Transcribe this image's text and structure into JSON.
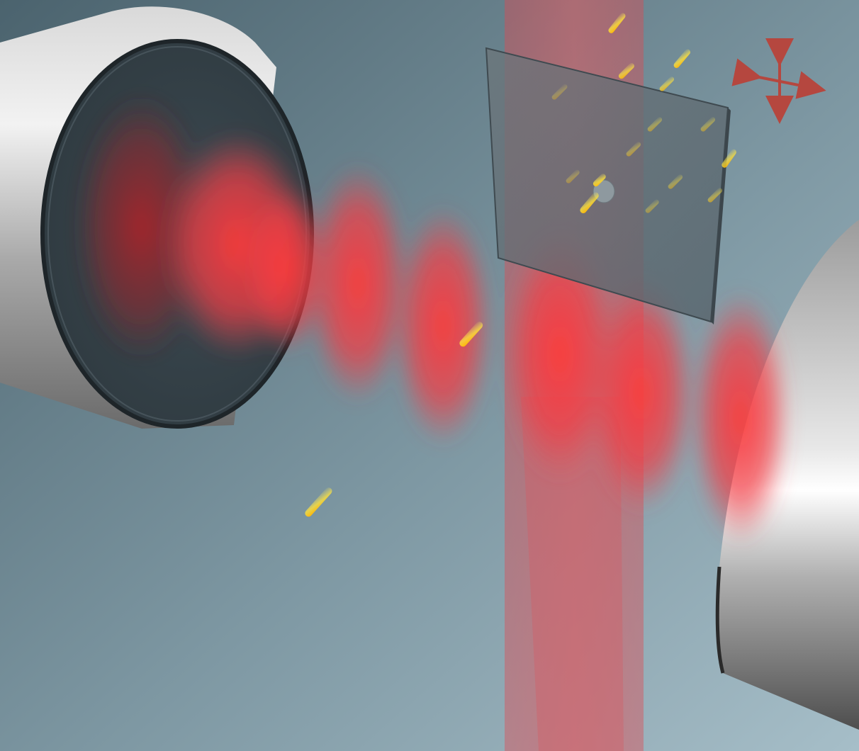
{
  "scene": {
    "background_top_left": "#4d6570",
    "background_bottom_right": "#a4bcc6",
    "laser_color": "#ff2a2a",
    "particle_color": "#ffd21a",
    "membrane_color": "#5d6a71",
    "arrow_color": "#b5473f",
    "mirror_left_icon": "cavity-mirror-left",
    "mirror_right_icon": "cavity-mirror-right",
    "translation_icon": "xy-translation-arrows"
  }
}
